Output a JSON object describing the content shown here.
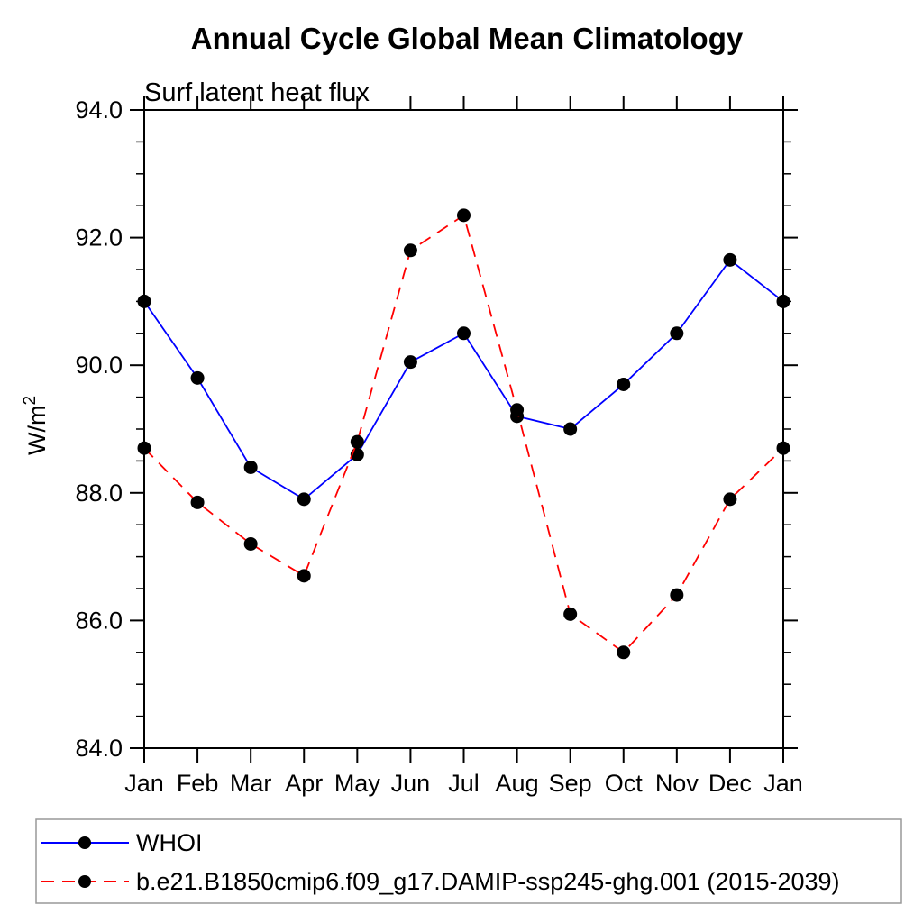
{
  "chart_data": {
    "type": "line",
    "title": "Annual Cycle Global Mean Climatology",
    "subtitle": "Surf latent heat flux",
    "ylabel_base": "W/m",
    "ylabel_exponent": "2",
    "categories": [
      "Jan",
      "Feb",
      "Mar",
      "Apr",
      "May",
      "Jun",
      "Jul",
      "Aug",
      "Sep",
      "Oct",
      "Nov",
      "Dec",
      "Jan"
    ],
    "series": [
      {
        "name": "WHOI",
        "color": "#0000ff",
        "line_style": "solid",
        "marker": "filled-circle",
        "marker_color": "#000000",
        "values": [
          91.0,
          89.8,
          88.4,
          87.9,
          88.6,
          90.05,
          90.5,
          89.2,
          89.0,
          89.7,
          90.5,
          91.65,
          91.0
        ]
      },
      {
        "name": "b.e21.B1850cmip6.f09_g17.DAMIP-ssp245-ghg.001 (2015-2039)",
        "color": "#ff0000",
        "line_style": "dashed",
        "marker": "filled-circle",
        "marker_color": "#000000",
        "values": [
          88.7,
          87.85,
          87.2,
          86.7,
          88.8,
          91.8,
          92.35,
          89.3,
          86.1,
          85.5,
          86.4,
          87.9,
          88.7
        ]
      }
    ],
    "ylim": [
      84.0,
      94.0
    ],
    "ytick_major_step": 2.0,
    "ytick_minor_step": 0.5,
    "ytick_labels": [
      "84.0",
      "86.0",
      "88.0",
      "90.0",
      "92.0",
      "94.0"
    ],
    "grid": false,
    "legend_position": "bottom box",
    "axis_color": "#000000"
  }
}
